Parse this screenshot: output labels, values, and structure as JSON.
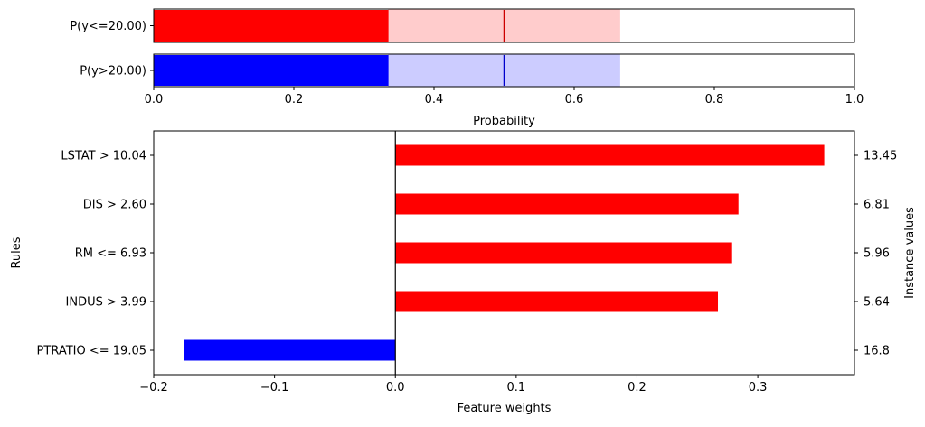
{
  "chart_data": [
    {
      "type": "bar",
      "orientation": "horizontal",
      "categories": [
        "P(y<=20.00)",
        "P(y>20.00)"
      ],
      "series": [
        {
          "values": [
            0.335,
            0.335
          ],
          "colors": [
            "#ff0000",
            "#0000ff"
          ]
        }
      ],
      "intervals": [
        {
          "category": "P(y<=20.00)",
          "low": 0.335,
          "high": 0.665,
          "color": "#ffcccc",
          "marker": 0.5,
          "marker_color": "#cc0000"
        },
        {
          "category": "P(y>20.00)",
          "low": 0.335,
          "high": 0.665,
          "color": "#ccccff",
          "marker": 0.5,
          "marker_color": "#0000cc"
        }
      ],
      "xlabel": "Probability",
      "xlim": [
        0.0,
        1.0
      ],
      "xticks": [
        "0.0",
        "0.2",
        "0.4",
        "0.6",
        "0.8",
        "1.0"
      ],
      "grid": false
    },
    {
      "type": "bar",
      "orientation": "horizontal",
      "categories": [
        "LSTAT > 10.04",
        "DIS > 2.60",
        "RM <= 6.93",
        "INDUS > 3.99",
        "PTRATIO <= 19.05"
      ],
      "series": [
        {
          "values": [
            0.355,
            0.284,
            0.278,
            0.267,
            -0.175
          ]
        }
      ],
      "instance_values": [
        "13.45",
        "6.81",
        "5.96",
        "5.64",
        "16.8"
      ],
      "positive_color": "#ff0000",
      "negative_color": "#0000ff",
      "xlabel": "Feature weights",
      "ylabel": "Rules",
      "y2label": "Instance values",
      "xlim": [
        -0.2,
        0.38
      ],
      "xticks": [
        {
          "value": -0.2,
          "label": "−0.2"
        },
        {
          "value": -0.1,
          "label": "−0.1"
        },
        {
          "value": 0.0,
          "label": "0.0"
        },
        {
          "value": 0.1,
          "label": "0.1"
        },
        {
          "value": 0.2,
          "label": "0.2"
        },
        {
          "value": 0.3,
          "label": "0.3"
        }
      ],
      "zero_line": true,
      "grid": false
    }
  ]
}
